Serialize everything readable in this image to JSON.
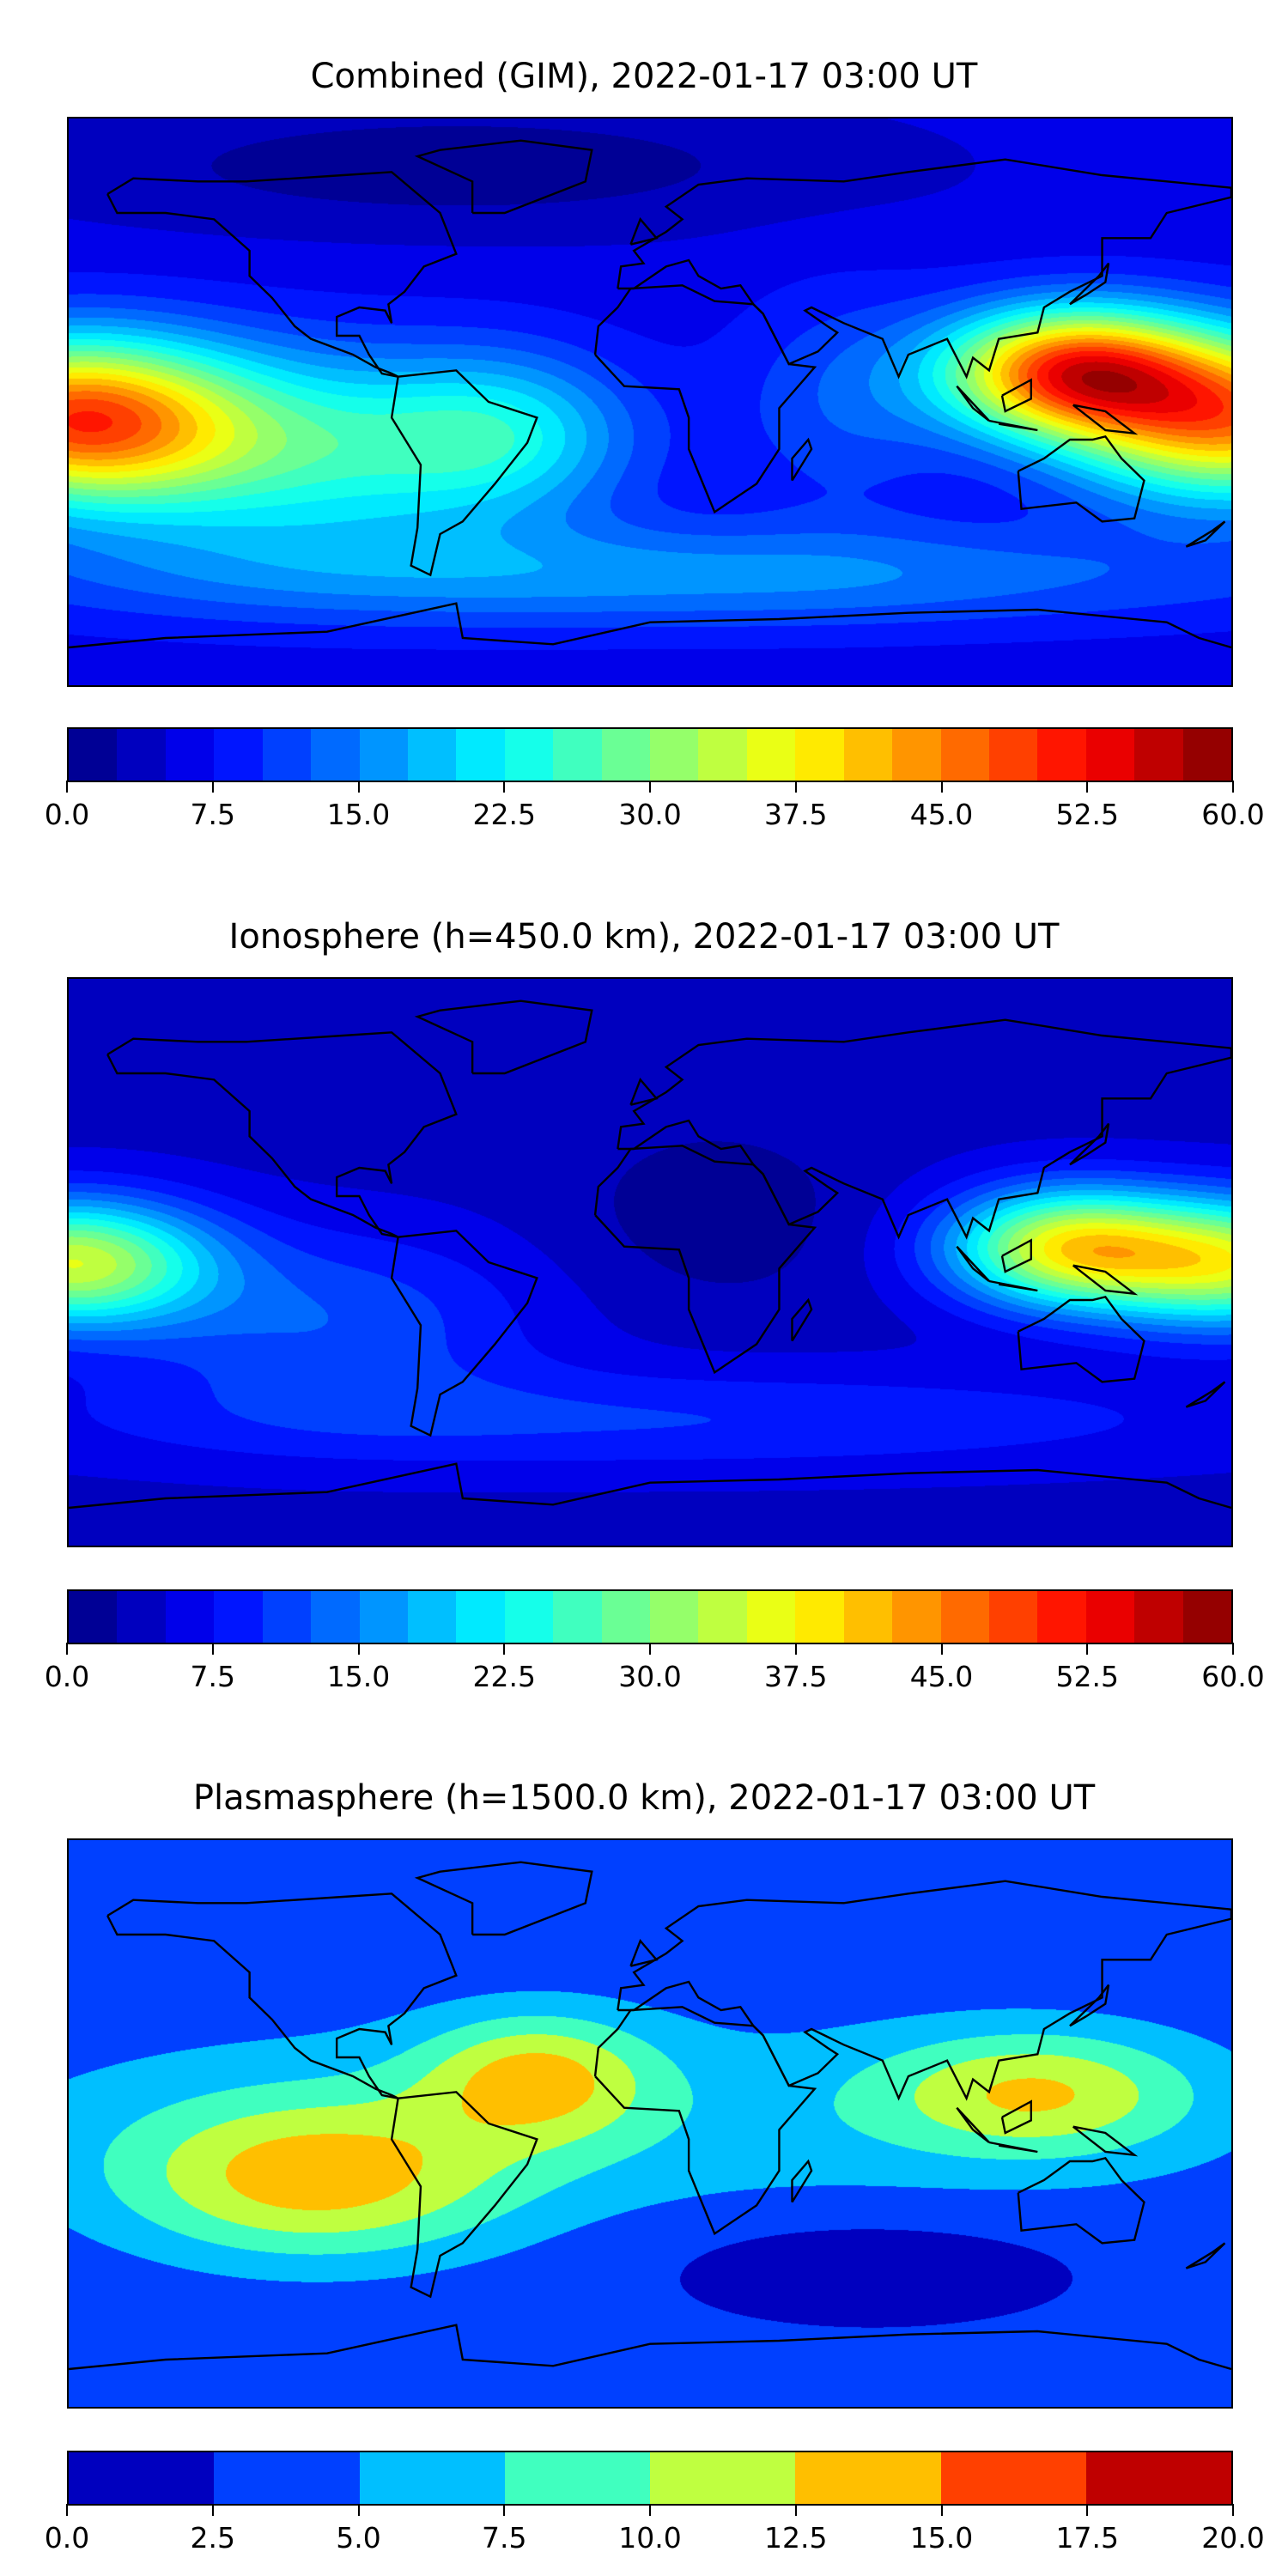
{
  "chart_data": [
    {
      "type": "heatmap",
      "title": "Combined (GIM), 2022-01-17 03:00 UT",
      "projection": "PlateCarree world map",
      "colormap": "jet",
      "vmin": 0,
      "vmax": 60,
      "levels": 24,
      "colorbar_ticks": [
        "0.0",
        "7.5",
        "15.0",
        "22.5",
        "30.0",
        "37.5",
        "45.0",
        "52.5",
        "60.0"
      ]
    },
    {
      "type": "heatmap",
      "title": "Ionosphere  (h=450.0 km), 2022-01-17 03:00 UT",
      "projection": "PlateCarree world map",
      "colormap": "jet",
      "vmin": 0,
      "vmax": 60,
      "levels": 24,
      "colorbar_ticks": [
        "0.0",
        "7.5",
        "15.0",
        "22.5",
        "30.0",
        "37.5",
        "45.0",
        "52.5",
        "60.0"
      ]
    },
    {
      "type": "heatmap",
      "title": "Plasmasphere (h=1500.0 km), 2022-01-17 03:00 UT",
      "projection": "PlateCarree world map",
      "colormap": "jet",
      "vmin": 0,
      "vmax": 20,
      "levels": 8,
      "colorbar_ticks": [
        "0.0",
        "2.5",
        "5.0",
        "7.5",
        "10.0",
        "12.5",
        "15.0",
        "17.5",
        "20.0"
      ]
    }
  ]
}
